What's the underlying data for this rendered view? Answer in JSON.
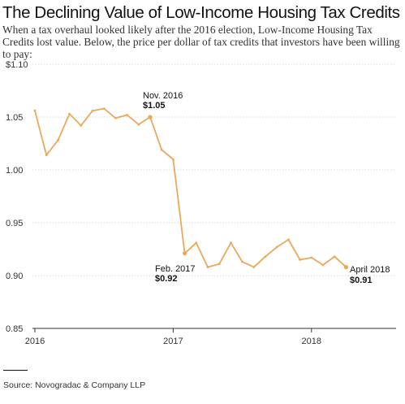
{
  "header": {
    "title": "The Declining Value of Low-Income Housing Tax Credits",
    "subtitle": "When a tax overhaul looked likely after the 2016 election, Low-Income Housing Tax Credits lost value. Below, the price per dollar of tax credits that investors have been willing to pay:"
  },
  "footer": {
    "source": "Source: Novogradac & Company LLP"
  },
  "chart_data": {
    "type": "line",
    "title": "The Declining Value of Low-Income Housing Tax Credits",
    "xlabel": "",
    "ylabel": "",
    "x_ticks": [
      "2016",
      "2017",
      "2018"
    ],
    "y_ticks": [
      "$1.10",
      "1.05",
      "1.00",
      "0.95",
      "0.90",
      "0.85"
    ],
    "ylim": [
      0.85,
      1.1
    ],
    "grid": true,
    "color": "#e8a95c",
    "series": [
      {
        "x": [
          "2016-01",
          "2016-02",
          "2016-03",
          "2016-04",
          "2016-05",
          "2016-06",
          "2016-07",
          "2016-08",
          "2016-09",
          "2016-10",
          "2016-11",
          "2016-12",
          "2017-01",
          "2017-02",
          "2017-03",
          "2017-04",
          "2017-05",
          "2017-06",
          "2017-07",
          "2017-08",
          "2017-09",
          "2017-10",
          "2017-11",
          "2017-12",
          "2018-01",
          "2018-02",
          "2018-03",
          "2018-04"
        ],
        "values": [
          1.056,
          1.014,
          1.028,
          1.053,
          1.042,
          1.056,
          1.058,
          1.049,
          1.052,
          1.043,
          1.05,
          1.019,
          1.01,
          0.921,
          0.931,
          0.908,
          0.911,
          0.931,
          0.913,
          0.908,
          0.918,
          0.927,
          0.934,
          0.915,
          0.917,
          0.91,
          0.918,
          0.908
        ]
      }
    ],
    "annotations": [
      {
        "label": "Nov. 2016",
        "value": "$1.05"
      },
      {
        "label": "Feb. 2017",
        "value": "$0.92"
      },
      {
        "label": "April 2018",
        "value": "$0.91"
      }
    ]
  }
}
